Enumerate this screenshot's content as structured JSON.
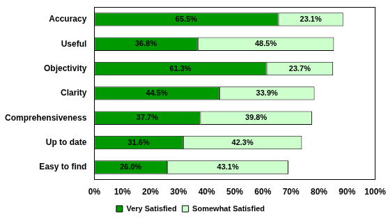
{
  "chart_data": {
    "type": "bar",
    "orientation": "horizontal",
    "stacked": true,
    "categories": [
      "Accuracy",
      "Useful",
      "Objectivity",
      "Clarity",
      "Comprehensiveness",
      "Up to date",
      "Easy to find"
    ],
    "series": [
      {
        "name": "Very Satisfied",
        "color": "#009a00",
        "values": [
          65.5,
          36.8,
          61.3,
          44.5,
          37.7,
          31.6,
          26.0
        ],
        "value_labels": [
          "65.5%",
          "36.8%",
          "61.3%",
          "44.5%",
          "37.7%",
          "31.6%",
          "26.0%"
        ]
      },
      {
        "name": "Somewhat Satisfied",
        "color": "#ccffcc",
        "values": [
          23.1,
          48.5,
          23.7,
          33.9,
          39.8,
          42.3,
          43.1
        ],
        "value_labels": [
          "23.1%",
          "48.5%",
          "23.7%",
          "33.9%",
          "39.8%",
          "42.3%",
          "43.1%"
        ]
      }
    ],
    "xlim": [
      0,
      100
    ],
    "xticks": [
      {
        "value": 0,
        "label": "0%"
      },
      {
        "value": 10,
        "label": "10%"
      },
      {
        "value": 20,
        "label": "20%"
      },
      {
        "value": 30,
        "label": "30%"
      },
      {
        "value": 40,
        "label": "40%"
      },
      {
        "value": 50,
        "label": "50%"
      },
      {
        "value": 60,
        "label": "60%"
      },
      {
        "value": 70,
        "label": "70%"
      },
      {
        "value": 80,
        "label": "80%"
      },
      {
        "value": 90,
        "label": "90%"
      },
      {
        "value": 100,
        "label": "100%"
      }
    ],
    "grid": false,
    "legend": "bottom",
    "data_labels": true
  }
}
